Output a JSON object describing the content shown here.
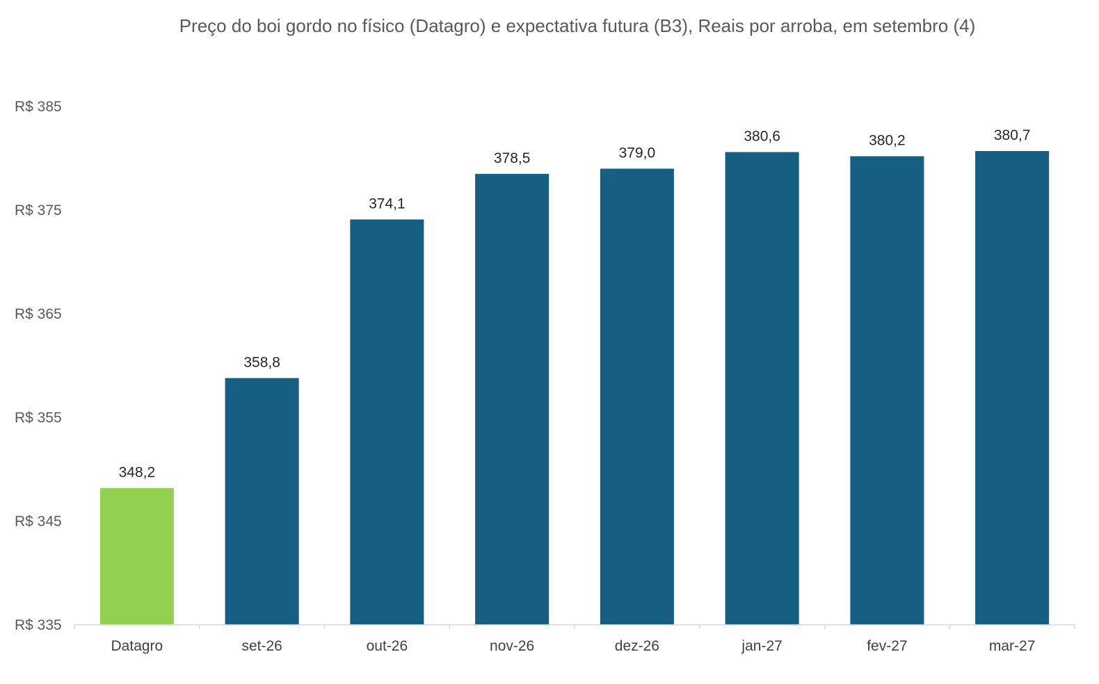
{
  "chart_data": {
    "type": "bar",
    "title": "Preço do boi gordo no físico (Datagro)  e expectativa futura (B3), Reais por arroba, em setembro (4)",
    "xlabel": "",
    "ylabel": "",
    "categories": [
      "Datagro",
      "set-26",
      "out-26",
      "nov-26",
      "dez-26",
      "jan-27",
      "fev-27",
      "mar-27"
    ],
    "values": [
      348.2,
      358.8,
      374.1,
      378.5,
      379.0,
      380.6,
      380.2,
      380.7
    ],
    "data_labels": [
      "348,2",
      "358,8",
      "374,1",
      "378,5",
      "379,0",
      "380,6",
      "380,2",
      "380,7"
    ],
    "ylim": [
      335,
      385
    ],
    "yticks": [
      335,
      345,
      355,
      365,
      375,
      385
    ],
    "ytick_labels": [
      "R$ 335",
      "R$ 345",
      "R$ 355",
      "R$ 365",
      "R$ 375",
      "R$ 385"
    ],
    "grid": false,
    "legend": "none",
    "colors": {
      "highlight": "#92d050",
      "bar": "#175f82",
      "axis": "#d9d9d9"
    }
  }
}
